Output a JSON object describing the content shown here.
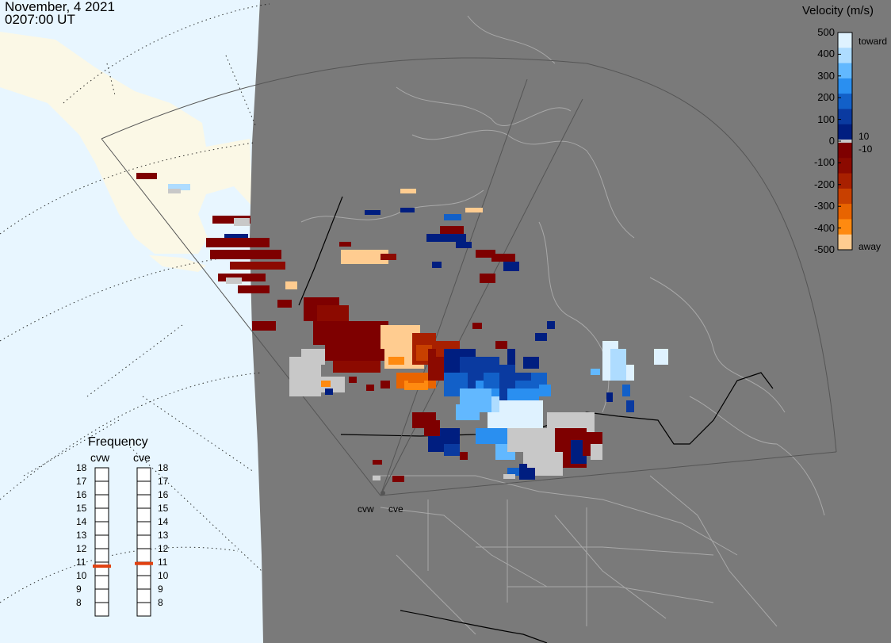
{
  "header": {
    "date": "November, 4 2021",
    "time": "0207:00 UT"
  },
  "velocity_scale": {
    "title": "Velocity (m/s)",
    "ticks": [
      "500",
      "400",
      "300",
      "200",
      "100",
      "0",
      "-100",
      "-200",
      "-300",
      "-400",
      "-500"
    ],
    "toward_label": "toward",
    "away_label": "away",
    "pos_threshold": "10",
    "neg_threshold": "-10",
    "colors": {
      "toward": [
        "#dff2ff",
        "#aedcff",
        "#62b8ff",
        "#2a8ff0",
        "#1260c8",
        "#0a3aa0",
        "#001e80"
      ],
      "away": [
        "#7e0000",
        "#8c0a00",
        "#a82000",
        "#c84000",
        "#e86400",
        "#ff8a10",
        "#ffcc90"
      ],
      "ground_scatter": "#c8c8c8"
    }
  },
  "frequency_panel": {
    "title": "Frequency",
    "radars": [
      {
        "name": "cvw",
        "freq_mhz": 10.7
      },
      {
        "name": "cve",
        "freq_mhz": 10.9
      }
    ],
    "scale": [
      "18",
      "17",
      "16",
      "15",
      "14",
      "13",
      "12",
      "11",
      "10",
      "9",
      "8"
    ],
    "marker_color": "#e04010"
  },
  "radar_sites": {
    "west": "cvw",
    "east": "cve"
  },
  "map_colors": {
    "night": "#7a7a7a",
    "day_ocean": "#e8f6ff",
    "day_land": "#fbf8e6",
    "coastline": "#a8a8a8",
    "boundary": "#000000",
    "fov": "#555555"
  }
}
